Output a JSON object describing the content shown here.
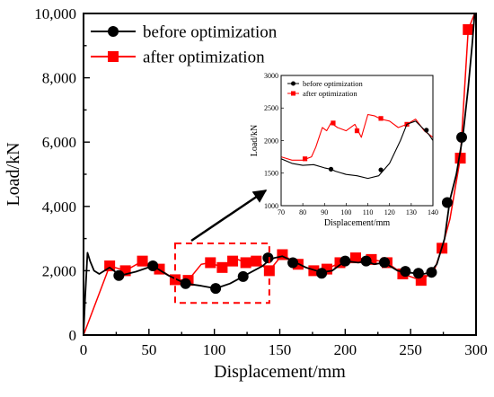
{
  "chart_data": {
    "type": "line",
    "xlabel": "Displacement/mm",
    "ylabel": "Load/kN",
    "xlim": [
      0,
      300
    ],
    "ylim": [
      0,
      10000
    ],
    "x_ticks": [
      0,
      50,
      100,
      150,
      200,
      250,
      300
    ],
    "y_ticks": [
      0,
      2000,
      4000,
      6000,
      8000,
      10000
    ],
    "x_tick_labels": [
      "0",
      "50",
      "100",
      "150",
      "200",
      "250",
      "300"
    ],
    "y_tick_labels": [
      "0",
      "2,000",
      "4,000",
      "6,000",
      "8,000",
      "10,000"
    ],
    "grid": false,
    "legend_position": "top-left",
    "series": [
      {
        "name": "before optimization",
        "color": "#000000",
        "marker": "circle",
        "x": [
          0,
          1,
          3,
          5,
          8,
          12,
          16,
          20,
          28,
          40,
          53,
          65,
          78,
          90,
          101,
          112,
          122,
          130,
          137,
          141,
          146,
          152,
          160,
          170,
          182,
          190,
          200,
          210,
          216,
          222,
          230,
          240,
          247,
          254,
          260,
          265,
          270,
          276,
          280,
          285,
          290,
          294,
          297,
          299
        ],
        "y": [
          0,
          1000,
          2560,
          2300,
          2000,
          1900,
          2000,
          2100,
          1850,
          1970,
          2150,
          1850,
          1600,
          1530,
          1450,
          1600,
          1820,
          2000,
          2150,
          2300,
          2400,
          2450,
          2300,
          2100,
          1950,
          2000,
          2300,
          2250,
          2300,
          2200,
          2250,
          2000,
          1950,
          1920,
          1900,
          1950,
          2200,
          3000,
          4200,
          5000,
          6200,
          7700,
          9000,
          10000
        ],
        "marker_x": [
          27,
          53,
          78,
          101,
          122,
          141,
          160,
          182,
          200,
          216,
          230,
          246,
          256,
          266,
          278,
          289
        ],
        "marker_y": [
          1850,
          2150,
          1600,
          1450,
          1820,
          2400,
          2250,
          1920,
          2300,
          2300,
          2260,
          1980,
          1920,
          1950,
          4120,
          6150
        ]
      },
      {
        "name": "after optimization",
        "color": "#ff0000",
        "marker": "square",
        "x": [
          0,
          20,
          32,
          45,
          58,
          70,
          80,
          90,
          97,
          106,
          114,
          118,
          124,
          132,
          142,
          152,
          164,
          176,
          186,
          196,
          208,
          220,
          232,
          244,
          258,
          268,
          274,
          280,
          288,
          294,
          299
        ],
        "y": [
          0,
          2150,
          2000,
          2300,
          2050,
          1720,
          1700,
          2200,
          2250,
          2100,
          2300,
          2350,
          2250,
          2300,
          2000,
          2500,
          2200,
          2000,
          2050,
          2250,
          2400,
          2350,
          2250,
          1900,
          1700,
          2000,
          2700,
          3600,
          5500,
          9500,
          10000
        ],
        "marker_x": [
          20,
          32,
          45,
          58,
          70,
          80,
          97,
          106,
          114,
          124,
          132,
          142,
          152,
          164,
          176,
          186,
          196,
          208,
          220,
          232,
          244,
          258,
          274,
          288,
          294
        ],
        "marker_y": [
          2150,
          2000,
          2300,
          2050,
          1720,
          1700,
          2250,
          2100,
          2300,
          2250,
          2300,
          2000,
          2500,
          2200,
          2000,
          2050,
          2250,
          2400,
          2350,
          2250,
          1900,
          1700,
          2700,
          5500,
          9500
        ]
      }
    ],
    "highlight_region": {
      "x": [
        70,
        142
      ],
      "y": [
        1000,
        2850
      ]
    },
    "inset": {
      "type": "line",
      "xlabel": "Displacement/mm",
      "ylabel": "Load/kN",
      "xlim": [
        70,
        140
      ],
      "ylim": [
        1000,
        3000
      ],
      "x_ticks": [
        70,
        80,
        90,
        100,
        110,
        120,
        130,
        140
      ],
      "y_ticks": [
        1000,
        1500,
        2000,
        2500,
        3000
      ],
      "x_tick_labels": [
        "70",
        "80",
        "90",
        "100",
        "110",
        "120",
        "130",
        "140"
      ],
      "y_tick_labels": [
        "1000",
        "1500",
        "2000",
        "2500",
        "3000"
      ],
      "legend_position": "top-left",
      "series": [
        {
          "name": "before optimization",
          "color": "#000000",
          "marker": "circle",
          "x": [
            70,
            75,
            80,
            85,
            90,
            93,
            95,
            100,
            105,
            110,
            115,
            120,
            125,
            128,
            132,
            135,
            138,
            140
          ],
          "y": [
            1720,
            1650,
            1620,
            1630,
            1580,
            1560,
            1530,
            1480,
            1460,
            1420,
            1460,
            1650,
            2000,
            2250,
            2300,
            2200,
            2100,
            2000
          ],
          "marker_x": [
            93,
            116,
            137
          ],
          "marker_y": [
            1560,
            1550,
            2160
          ]
        },
        {
          "name": "after optimization",
          "color": "#ff0000",
          "marker": "square",
          "x": [
            70,
            75,
            80,
            84,
            86,
            89,
            91,
            93,
            96,
            100,
            104,
            107,
            110,
            113,
            116,
            120,
            124,
            128,
            132,
            136,
            140
          ],
          "y": [
            1750,
            1700,
            1700,
            1750,
            1900,
            2200,
            2150,
            2270,
            2200,
            2150,
            2250,
            2050,
            2400,
            2380,
            2330,
            2300,
            2200,
            2250,
            2330,
            2150,
            2050
          ],
          "marker_x": [
            81,
            94,
            105,
            116,
            128
          ],
          "marker_y": [
            1720,
            2270,
            2150,
            2340,
            2250
          ]
        }
      ]
    }
  }
}
